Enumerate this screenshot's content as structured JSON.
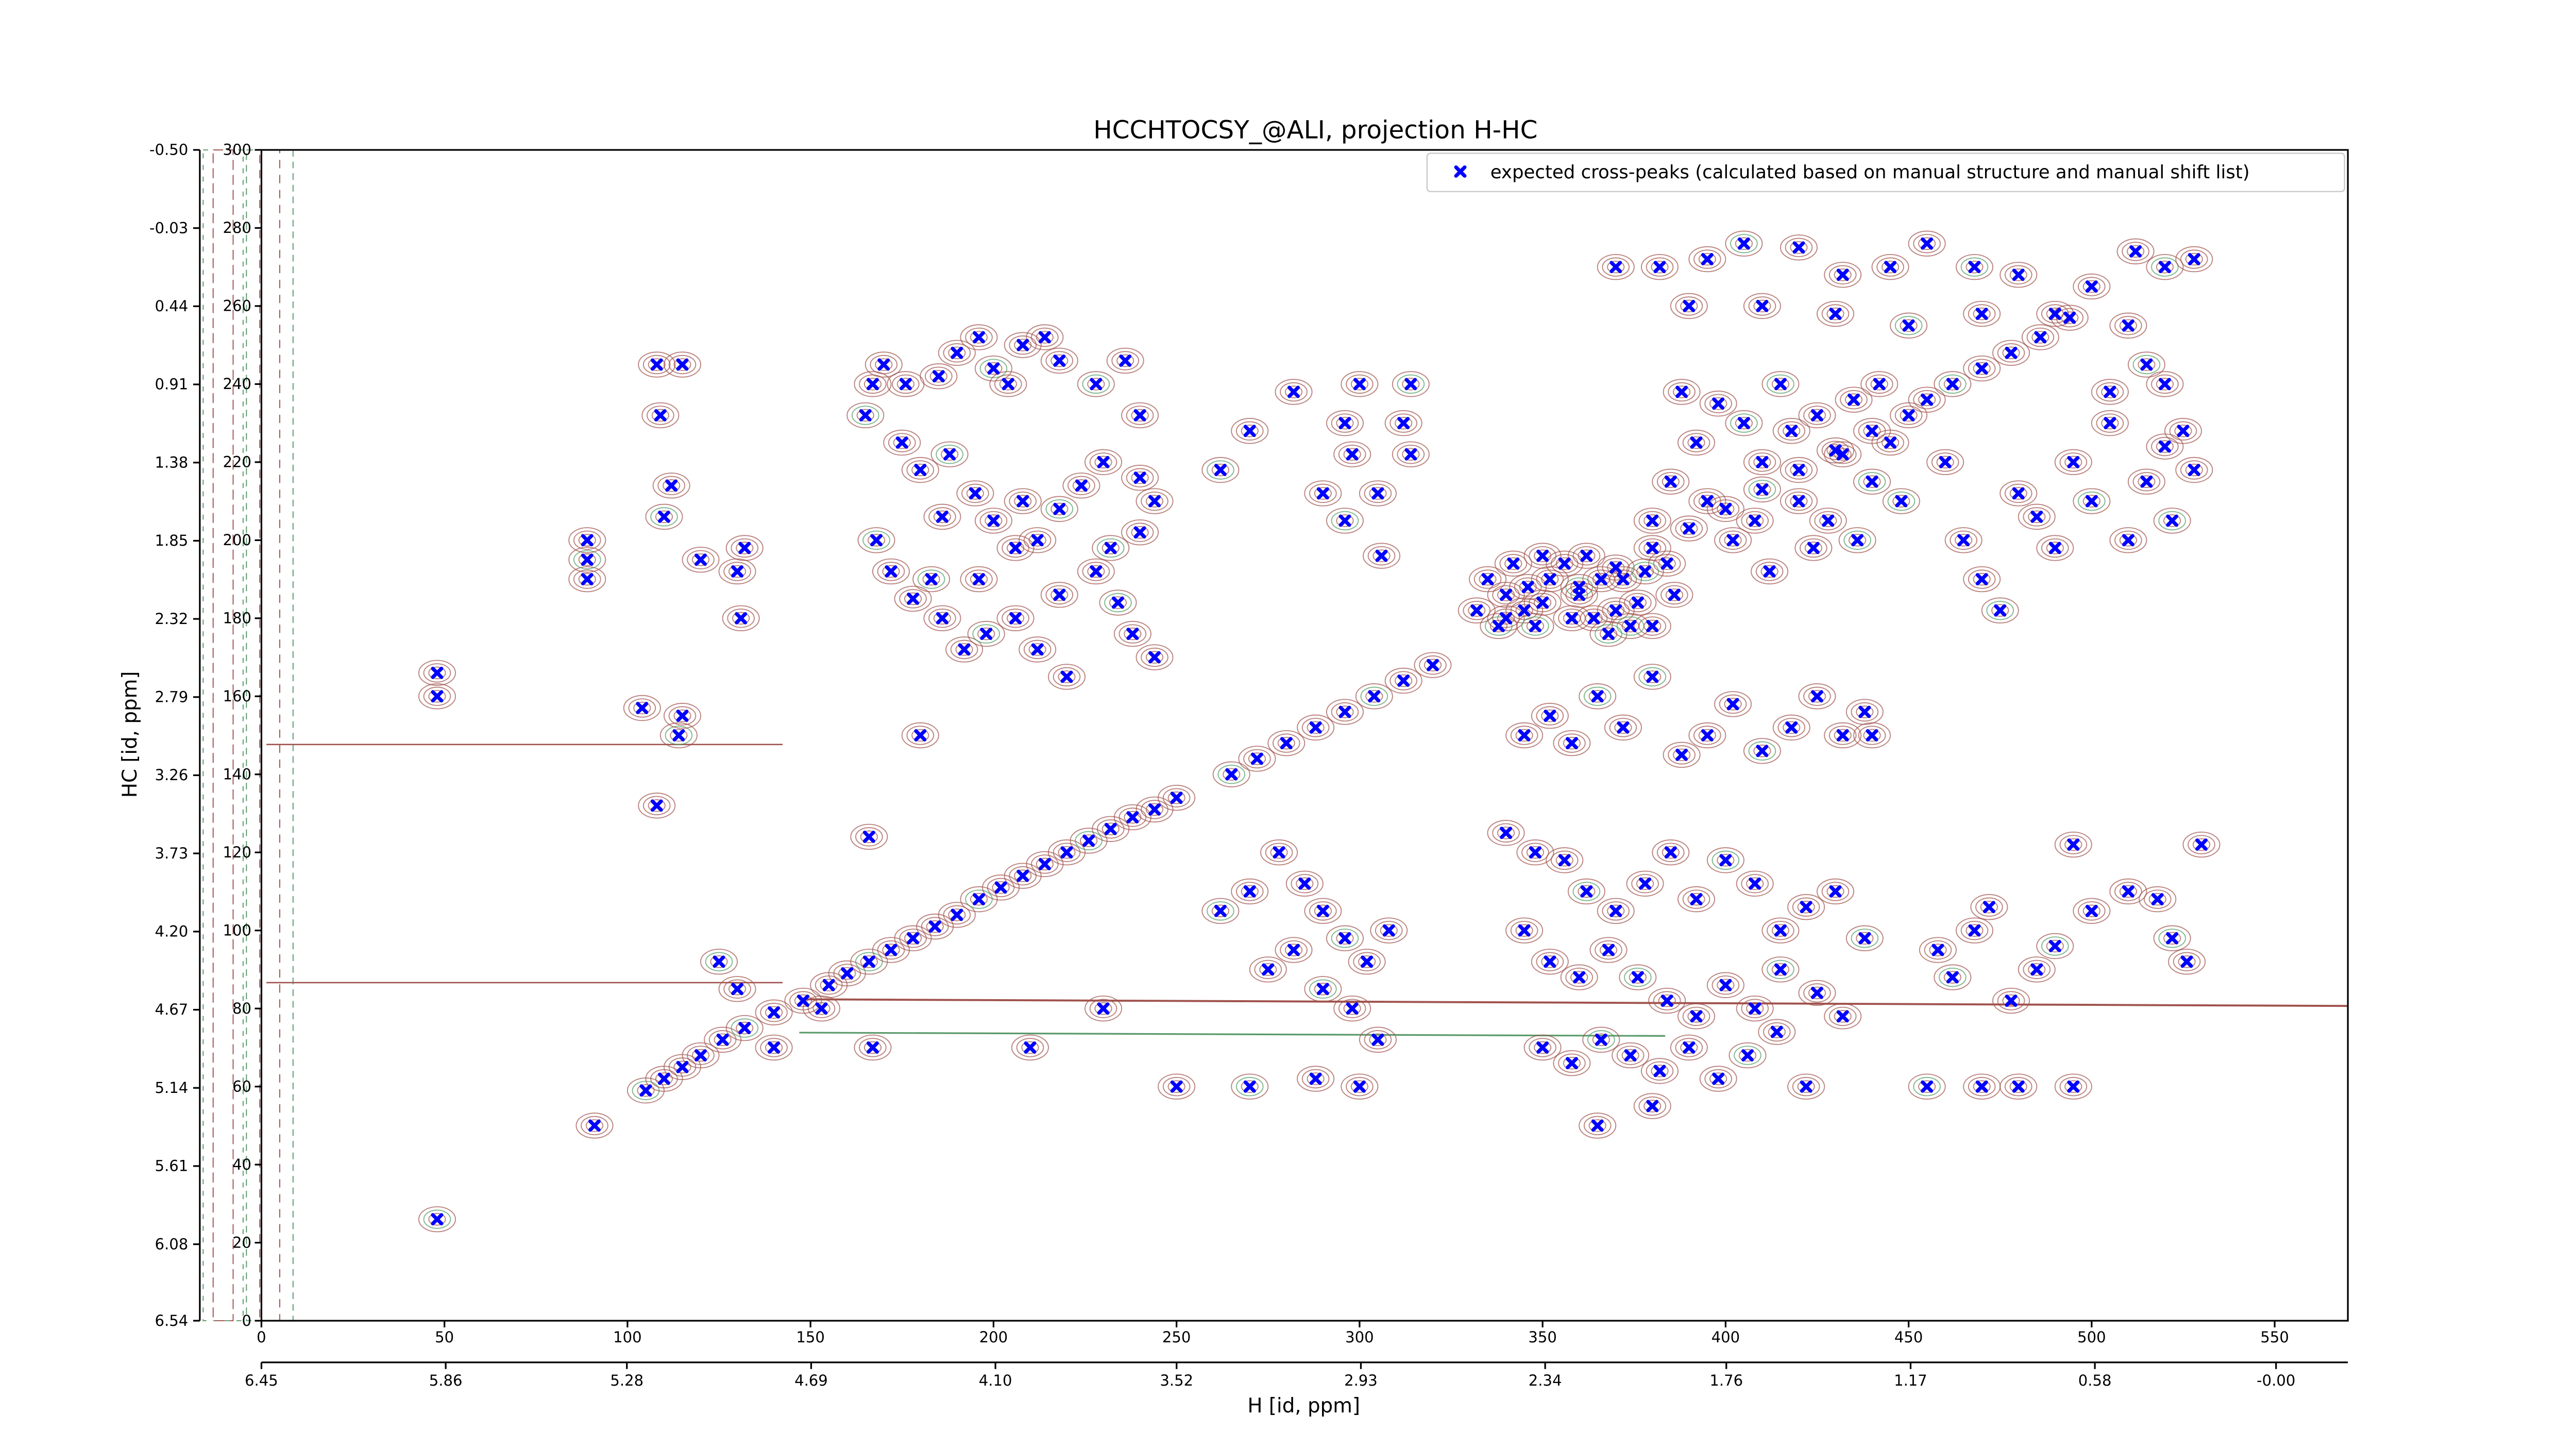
{
  "chart_data": {
    "type": "scatter",
    "title": "HCCHTOCSY_@ALI, projection H-HC",
    "xlabel": "H [id, ppm]",
    "ylabel": "HC [id, ppm]",
    "xlim": [
      0,
      570
    ],
    "xticks": [
      0,
      50,
      100,
      150,
      200,
      250,
      300,
      350,
      400,
      450,
      500,
      550
    ],
    "x2lim": [
      6.45,
      -0.23
    ],
    "x2ticks": [
      6.45,
      5.86,
      5.28,
      4.69,
      {
        "value": 4.1,
        "label": "4.10"
      },
      3.52,
      2.93,
      2.34,
      1.76,
      1.17,
      0.58,
      {
        "value": 0,
        "label": "-0.00"
      }
    ],
    "ylim": [
      0,
      300
    ],
    "yticks": [
      0,
      20,
      40,
      60,
      80,
      100,
      120,
      140,
      160,
      180,
      200,
      220,
      240,
      260,
      280,
      300
    ],
    "y2lim": [
      6.54,
      -0.5
    ],
    "y2ticks": [
      6.54,
      6.08,
      5.61,
      5.14,
      4.67,
      {
        "value": 4.2,
        "label": "4.20"
      },
      3.73,
      3.26,
      2.79,
      2.32,
      1.85,
      1.38,
      0.91,
      0.44,
      -0.03,
      {
        "value": -0.5,
        "label": "-0.50"
      }
    ],
    "legend": "upper right",
    "series": [
      {
        "name": "expected cross-peaks (calculated based on manual structure and manual shift list)",
        "color": "#0000ff",
        "x": [
          105,
          110,
          115,
          120,
          126,
          132,
          140,
          148,
          155,
          160,
          166,
          172,
          178,
          184,
          190,
          196,
          202,
          208,
          214,
          220,
          226,
          232,
          238,
          244,
          250,
          265,
          272,
          280,
          288,
          296,
          304,
          312,
          320,
          340,
          350,
          360,
          370,
          380,
          390,
          400,
          410,
          420,
          430,
          440,
          455,
          462,
          470,
          478,
          486,
          494,
          48,
          48,
          48,
          91,
          89,
          89,
          89,
          108,
          109,
          115,
          114,
          115,
          104,
          108,
          112,
          110,
          130,
          132,
          120,
          131,
          125,
          130,
          140,
          153,
          167,
          183,
          180,
          166,
          167,
          170,
          165,
          176,
          185,
          190,
          196,
          200,
          204,
          208,
          214,
          218,
          228,
          236,
          240,
          175,
          180,
          188,
          195,
          200,
          206,
          212,
          218,
          224,
          230,
          240,
          244,
          168,
          172,
          178,
          186,
          192,
          198,
          206,
          212,
          218,
          228,
          234,
          238,
          244,
          220,
          240,
          232,
          186,
          196,
          208,
          270,
          262,
          282,
          296,
          298,
          290,
          296,
          305,
          306,
          300,
          312,
          314,
          314,
          335,
          340,
          345,
          348,
          352,
          356,
          360,
          364,
          368,
          372,
          376,
          380,
          384,
          338,
          342,
          350,
          362,
          370,
          378,
          386,
          332,
          346,
          358,
          374,
          366,
          385,
          392,
          398,
          405,
          410,
          418,
          425,
          432,
          440,
          445,
          395,
          402,
          408,
          415,
          420,
          428,
          435,
          442,
          448,
          388,
          380,
          412,
          424,
          436,
          450,
          370,
          382,
          395,
          405,
          420,
          432,
          445,
          455,
          468,
          480,
          490,
          500,
          512,
          520,
          528,
          390,
          410,
          430,
          450,
          470,
          510,
          520,
          525,
          515,
          505,
          460,
          465,
          470,
          475,
          480,
          485,
          490,
          495,
          500,
          505,
          510,
          515,
          520,
          522,
          528,
          345,
          352,
          358,
          365,
          372,
          388,
          395,
          402,
          410,
          418,
          425,
          432,
          438,
          380,
          440,
          340,
          348,
          356,
          362,
          370,
          378,
          385,
          392,
          400,
          408,
          415,
          422,
          430,
          438,
          345,
          352,
          360,
          368,
          376,
          384,
          392,
          400,
          408,
          415,
          425,
          432,
          350,
          358,
          366,
          374,
          382,
          390,
          398,
          406,
          414,
          422,
          380,
          365,
          262,
          270,
          278,
          285,
          290,
          296,
          302,
          308,
          275,
          282,
          290,
          298,
          305,
          288,
          300,
          270,
          250,
          210,
          230,
          458,
          462,
          468,
          472,
          478,
          485,
          490,
          495,
          500,
          510,
          518,
          522,
          526,
          530,
          480,
          470,
          455,
          495
        ],
        "values": [
          59,
          62,
          65,
          68,
          72,
          75,
          79,
          82,
          86,
          89,
          92,
          95,
          98,
          101,
          104,
          108,
          111,
          114,
          117,
          120,
          123,
          126,
          129,
          131,
          134,
          140,
          144,
          148,
          152,
          156,
          160,
          164,
          168,
          180,
          184,
          188,
          193,
          198,
          203,
          208,
          213,
          218,
          223,
          228,
          236,
          240,
          244,
          248,
          252,
          257,
          26,
          160,
          166,
          50,
          190,
          195,
          200,
          245,
          232,
          245,
          150,
          155,
          157,
          132,
          214,
          206,
          192,
          198,
          195,
          180,
          92,
          85,
          70,
          80,
          70,
          190,
          150,
          124,
          240,
          245,
          232,
          240,
          242,
          248,
          252,
          244,
          240,
          250,
          252,
          246,
          240,
          246,
          232,
          225,
          218,
          222,
          212,
          205,
          198,
          200,
          208,
          214,
          220,
          216,
          210,
          200,
          192,
          185,
          180,
          172,
          176,
          180,
          172,
          186,
          192,
          184,
          176,
          170,
          165,
          202,
          198,
          206,
          190,
          210,
          228,
          218,
          238,
          230,
          222,
          212,
          205,
          212,
          196,
          240,
          230,
          240,
          222,
          190,
          186,
          182,
          178,
          190,
          194,
          186,
          180,
          176,
          190,
          184,
          178,
          194,
          178,
          194,
          196,
          196,
          182,
          192,
          186,
          182,
          188,
          180,
          178,
          190,
          215,
          225,
          235,
          230,
          220,
          228,
          232,
          222,
          215,
          225,
          210,
          200,
          205,
          240,
          210,
          205,
          236,
          240,
          210,
          238,
          205,
          192,
          198,
          200,
          232,
          270,
          270,
          272,
          276,
          275,
          268,
          270,
          276,
          270,
          268,
          258,
          265,
          274,
          270,
          272,
          260,
          260,
          258,
          255,
          258,
          255,
          240,
          228,
          245,
          238,
          220,
          200,
          190,
          182,
          212,
          206,
          198,
          220,
          210,
          230,
          200,
          215,
          224,
          205,
          218,
          150,
          155,
          148,
          160,
          152,
          145,
          150,
          158,
          146,
          152,
          160,
          150,
          156,
          165,
          150,
          125,
          120,
          118,
          110,
          105,
          112,
          120,
          108,
          118,
          112,
          100,
          106,
          110,
          98,
          100,
          92,
          88,
          95,
          88,
          82,
          78,
          86,
          80,
          90,
          84,
          78,
          70,
          66,
          72,
          68,
          64,
          70,
          62,
          68,
          74,
          60,
          55,
          50,
          105,
          110,
          120,
          112,
          105,
          98,
          92,
          100,
          90,
          95,
          85,
          80,
          72,
          62,
          60,
          60,
          60,
          70,
          80,
          95,
          88,
          100,
          106,
          82,
          90,
          96,
          122,
          105,
          110,
          108,
          98,
          92,
          122,
          60,
          60,
          60,
          60
        ]
      }
    ]
  }
}
